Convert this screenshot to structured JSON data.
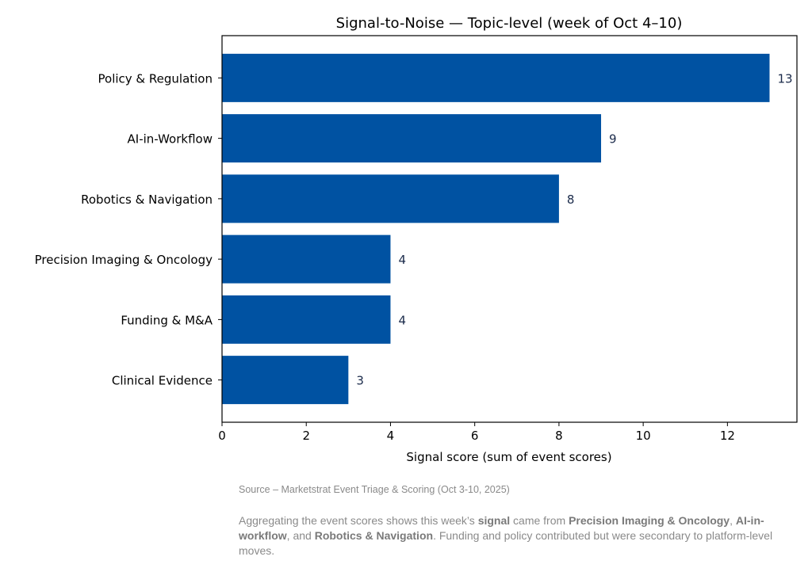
{
  "chart_data": {
    "type": "bar",
    "orientation": "horizontal",
    "title": "Signal-to-Noise — Topic-level (week of Oct 4–10)",
    "xlabel": "Signal score (sum of event scores)",
    "ylabel": "",
    "categories": [
      "Policy & Regulation",
      "AI-in-Workflow",
      "Robotics & Navigation",
      "Precision Imaging & Oncology",
      "Funding & M&A",
      "Clinical Evidence"
    ],
    "values": [
      13,
      9,
      8,
      4,
      4,
      3
    ],
    "xlim": [
      0,
      13.65
    ],
    "xticks": [
      0,
      2,
      4,
      6,
      8,
      10,
      12
    ],
    "grid": false,
    "bar_color": "#0052a2",
    "label_color": "#1a2a4a"
  },
  "footer": {
    "source": "Source – Marketstrat Event Triage & Scoring (Oct 3-10, 2025)",
    "summary_parts": [
      {
        "text": "Aggregating the event scores shows this week’s ",
        "bold": false
      },
      {
        "text": "signal",
        "bold": true
      },
      {
        "text": " came from ",
        "bold": false
      },
      {
        "text": "Precision Imaging & Oncology",
        "bold": true
      },
      {
        "text": ", ",
        "bold": false
      },
      {
        "text": "AI-in-workflow",
        "bold": true
      },
      {
        "text": ", and ",
        "bold": false
      },
      {
        "text": "Robotics & Navigation",
        "bold": true
      },
      {
        "text": ". Funding and policy contributed but were secondary to platform-level moves.",
        "bold": false
      }
    ]
  }
}
